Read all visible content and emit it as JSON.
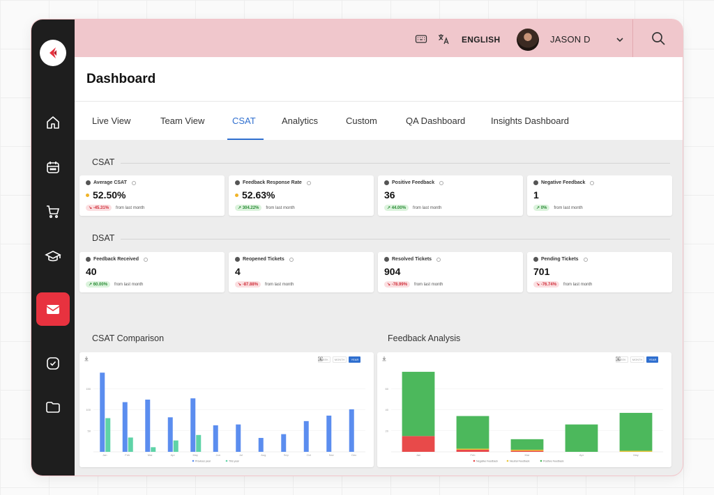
{
  "topbar": {
    "language": "ENGLISH",
    "user_name": "JASON D"
  },
  "page": {
    "title": "Dashboard"
  },
  "tabs": [
    {
      "label": "Live View"
    },
    {
      "label": "Team View"
    },
    {
      "label": "CSAT",
      "active": true
    },
    {
      "label": "Analytics"
    },
    {
      "label": "Custom"
    },
    {
      "label": "QA Dashboard"
    },
    {
      "label": "Insights Dashboard"
    }
  ],
  "sidebar": {
    "items": [
      "home-icon",
      "calendar-icon",
      "cart-icon",
      "graduation-cap-icon",
      "mail-icon",
      "check-circle-icon",
      "folder-icon"
    ],
    "active": "mail-icon"
  },
  "csat": {
    "label": "CSAT",
    "cards": [
      {
        "label": "Average CSAT",
        "value": "52.50%",
        "change": "-45.31%",
        "trend": "down",
        "footer": "from last month",
        "dot": true
      },
      {
        "label": "Feedback Response Rate",
        "value": "52.63%",
        "change": "304.22%",
        "trend": "up",
        "footer": "from last month",
        "dot": true
      },
      {
        "label": "Positive Feedback",
        "value": "36",
        "change": "44.00%",
        "trend": "up",
        "footer": "from last month"
      },
      {
        "label": "Negative Feedback",
        "value": "1",
        "change": "0%",
        "trend": "up",
        "footer": "from last month"
      }
    ]
  },
  "dsat": {
    "label": "DSAT",
    "cards": [
      {
        "label": "Feedback Received",
        "value": "40",
        "change": "60.00%",
        "trend": "up",
        "footer": "from last month"
      },
      {
        "label": "Reopened Tickets",
        "value": "4",
        "change": "-87.88%",
        "trend": "down",
        "footer": "from last month"
      },
      {
        "label": "Resolved Tickets",
        "value": "904",
        "change": "-78.99%",
        "trend": "down",
        "footer": "from last month"
      },
      {
        "label": "Pending Tickets",
        "value": "701",
        "change": "-76.74%",
        "trend": "down",
        "footer": "from last month"
      }
    ]
  },
  "charts": {
    "csat_comparison": {
      "title": "CSAT Comparison",
      "toolbar": [
        "WEEK",
        "MONTH",
        "YEAR"
      ],
      "active_range": "YEAR"
    },
    "feedback_analysis": {
      "title": "Feedback Analysis",
      "toolbar": [
        "WEEK",
        "MONTH",
        "YEAR"
      ],
      "active_range": "YEAR"
    }
  },
  "chart_data": [
    {
      "type": "bar",
      "title": "CSAT Comparison",
      "categories": [
        "Jan",
        "Feb",
        "Mar",
        "Apr",
        "May",
        "Jun",
        "Jul",
        "Aug",
        "Sep",
        "Oct",
        "Nov",
        "Dec"
      ],
      "series": [
        {
          "name": "Previous year",
          "color": "#5b8def",
          "values": [
            188,
            118,
            124,
            82,
            127,
            63,
            65,
            33,
            42,
            73,
            86,
            101
          ]
        },
        {
          "name": "This year",
          "color": "#5fd3a7",
          "values": [
            80,
            34,
            11,
            27,
            40,
            0,
            0,
            0,
            0,
            0,
            0,
            0
          ]
        }
      ],
      "yticks": [
        50,
        100,
        150
      ],
      "ylim": [
        0,
        200
      ],
      "grid": true,
      "legend": "bottom"
    },
    {
      "type": "bar",
      "stacked": true,
      "title": "Feedback Analysis",
      "categories": [
        "Jan",
        "Feb",
        "Mar",
        "Apr",
        "May"
      ],
      "series": [
        {
          "name": "Negative Feedback",
          "color": "#e84a4a",
          "values": [
            15,
            2,
            1,
            0,
            0
          ]
        },
        {
          "name": "Neutral Feedback",
          "color": "#e8c53a",
          "values": [
            0,
            1,
            1,
            0,
            1
          ]
        },
        {
          "name": "Positive Feedback",
          "color": "#4cb85c",
          "values": [
            61,
            31,
            10,
            26,
            36
          ]
        }
      ],
      "yticks": [
        20,
        40,
        60
      ],
      "ylim": [
        0,
        80
      ],
      "grid": true,
      "legend": "bottom"
    }
  ]
}
